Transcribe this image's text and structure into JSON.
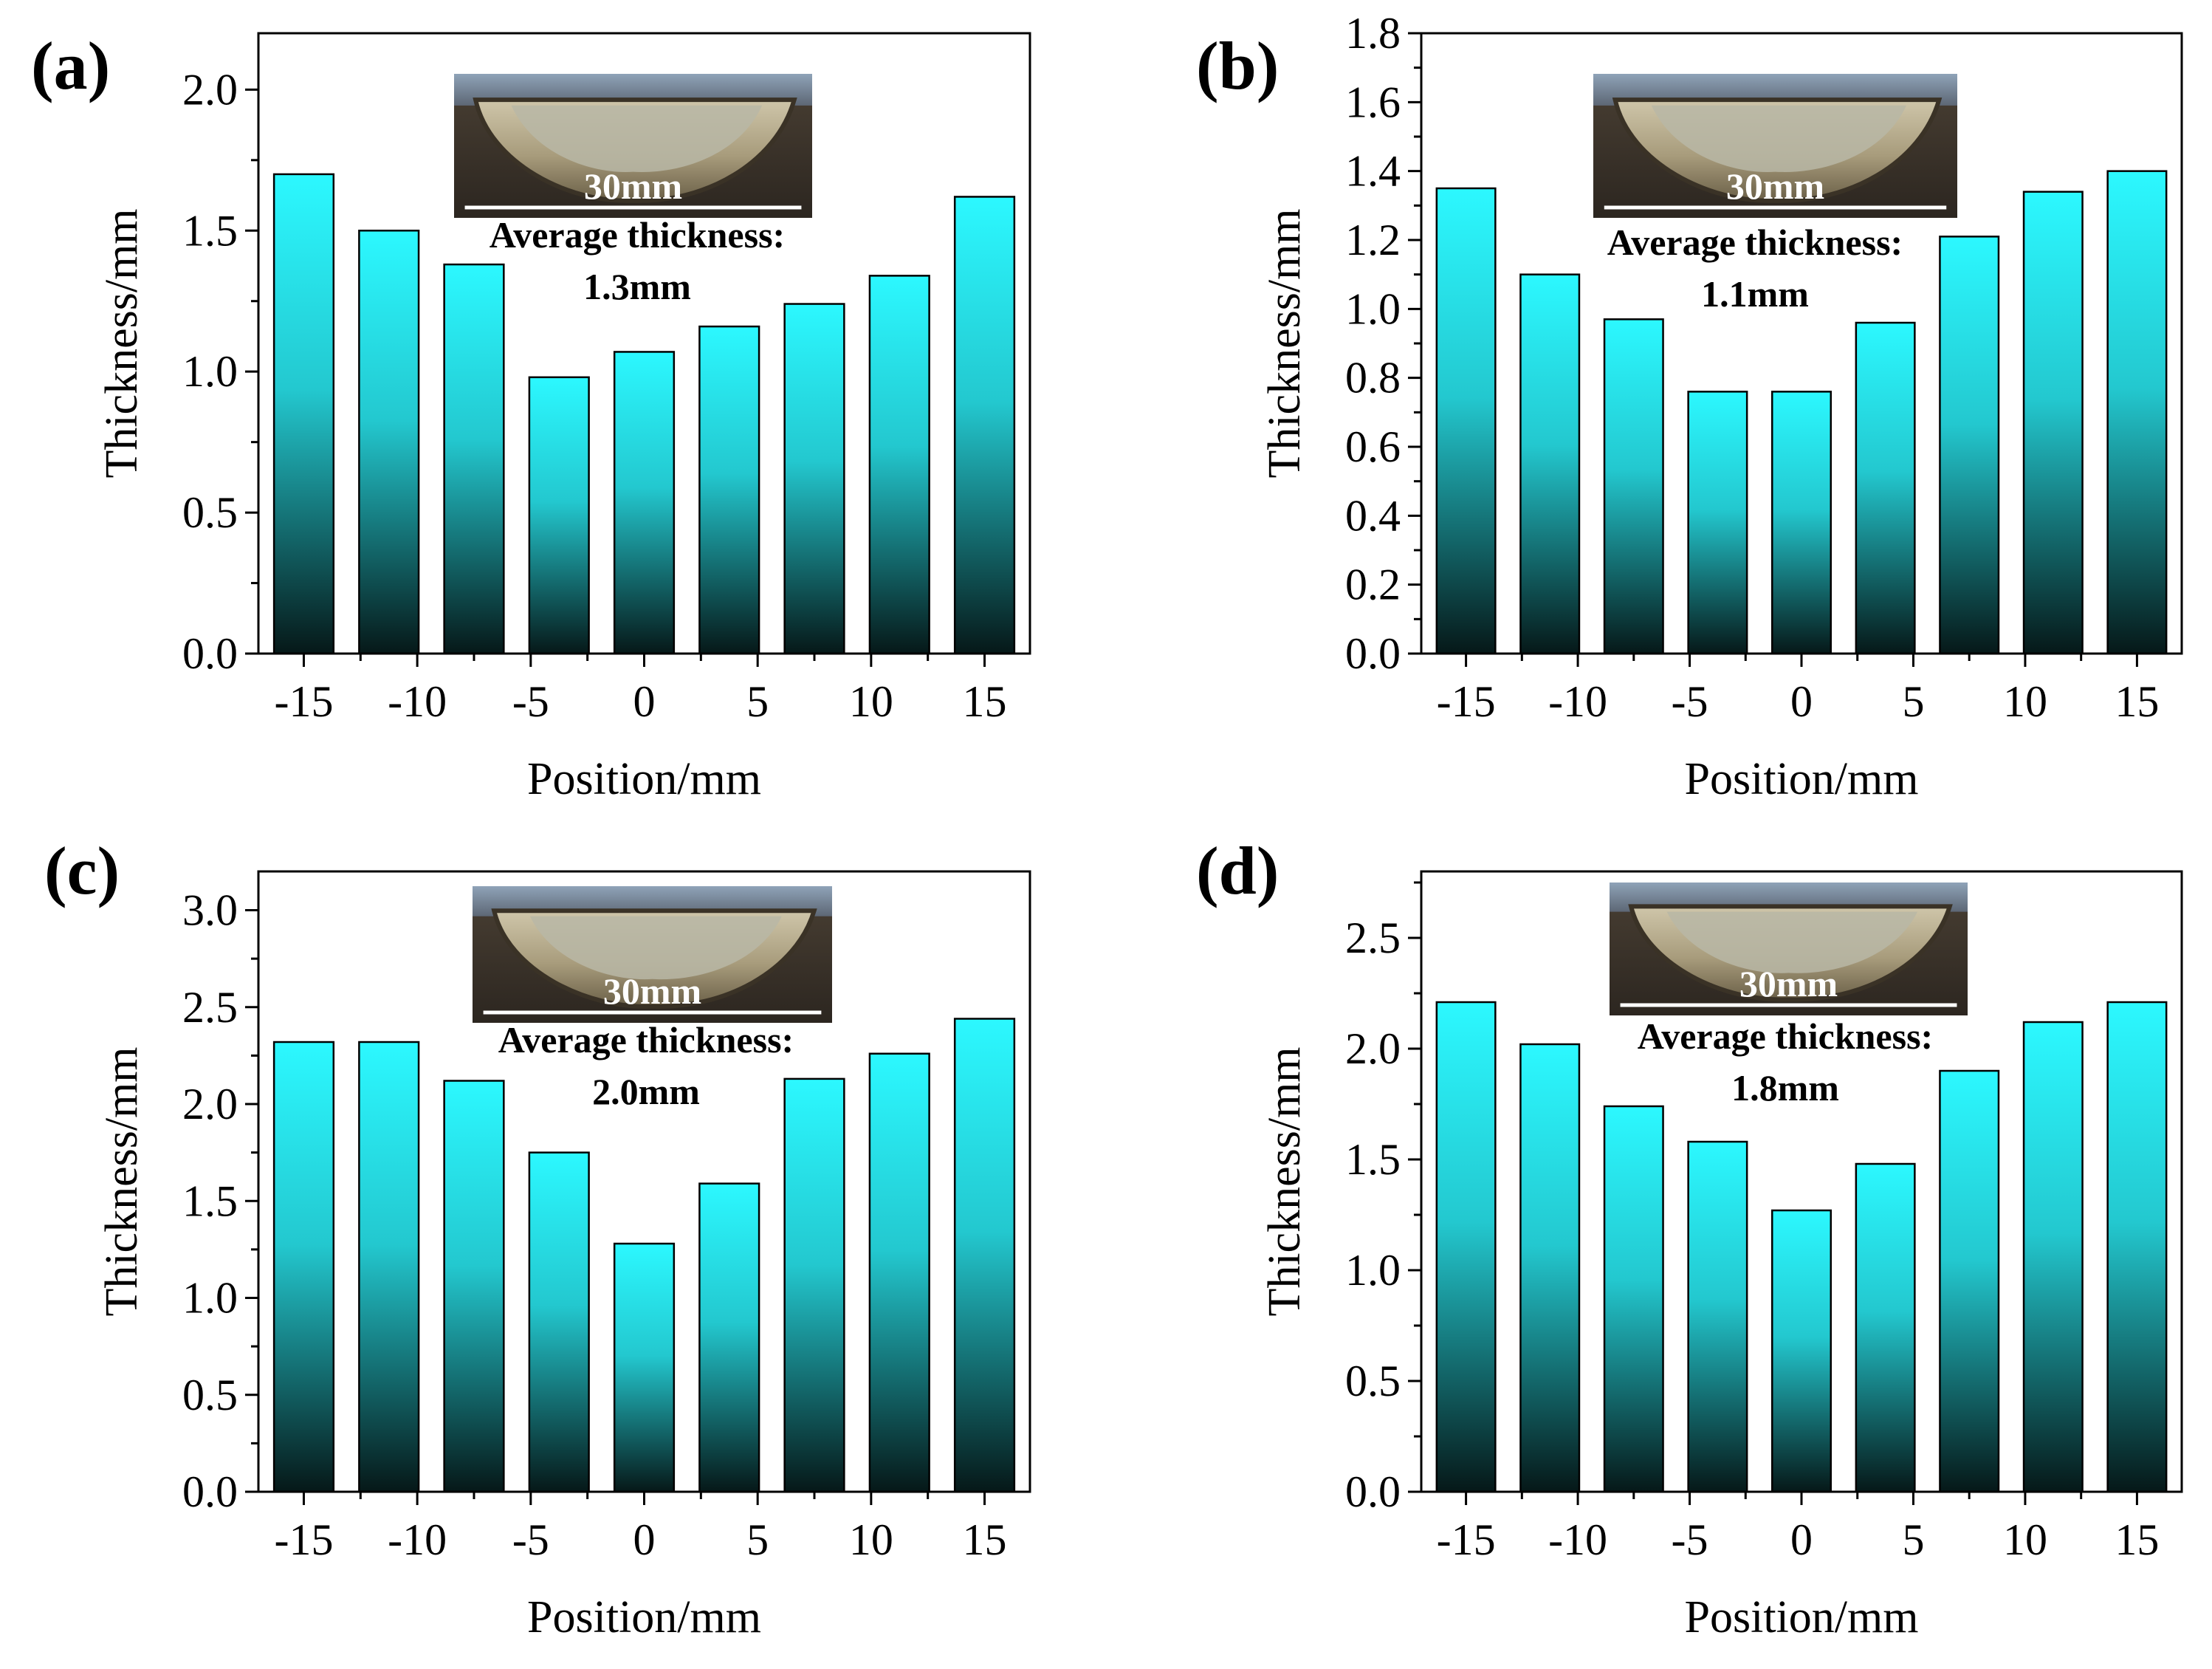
{
  "figure": {
    "gradient": {
      "top_color": "#2cf8ff",
      "mid_color": "#23c8cf",
      "bottom_color": "#061818"
    },
    "bar_outline_color": "#000000"
  },
  "chart_data": [
    {
      "id": "a",
      "type": "bar",
      "panel_label": "(a)",
      "xlabel": "Position/mm",
      "ylabel": "Thickness/mm",
      "categories": [
        -15,
        -11.25,
        -7.5,
        -3.75,
        0,
        3.75,
        7.5,
        11.25,
        15
      ],
      "values": [
        1.7,
        1.5,
        1.38,
        0.98,
        1.07,
        1.16,
        1.24,
        1.34,
        1.62
      ],
      "xlim": [
        -17,
        17
      ],
      "ylim": [
        0,
        2.2
      ],
      "yticks": [
        0.0,
        0.5,
        1.0,
        1.5,
        2.0
      ],
      "ytick_labels": [
        "0.0",
        "0.5",
        "1.0",
        "1.5",
        "2.0"
      ],
      "xticks": [
        -15,
        -10,
        -5,
        0,
        5,
        10,
        15
      ],
      "xtick_labels": [
        "-15",
        "-10",
        "-5",
        "0",
        "5",
        "10",
        "15"
      ],
      "inset": {
        "scale_label": "30mm",
        "annotation_line1": "Average thickness:",
        "annotation_line2": "1.3mm"
      }
    },
    {
      "id": "b",
      "type": "bar",
      "panel_label": "(b)",
      "xlabel": "Position/mm",
      "ylabel": "Thickness/mm",
      "categories": [
        -15,
        -11.25,
        -7.5,
        -3.75,
        0,
        3.75,
        7.5,
        11.25,
        15
      ],
      "values": [
        1.35,
        1.1,
        0.97,
        0.76,
        0.76,
        0.96,
        1.21,
        1.34,
        1.4
      ],
      "xlim": [
        -17,
        17
      ],
      "ylim": [
        0,
        1.8
      ],
      "yticks": [
        0.0,
        0.2,
        0.4,
        0.6,
        0.8,
        1.0,
        1.2,
        1.4,
        1.6,
        1.8
      ],
      "ytick_labels": [
        "0.0",
        "0.2",
        "0.4",
        "0.6",
        "0.8",
        "1.0",
        "1.2",
        "1.4",
        "1.6",
        "1.8"
      ],
      "xticks": [
        -15,
        -10,
        -5,
        0,
        5,
        10,
        15
      ],
      "xtick_labels": [
        "-15",
        "-10",
        "-5",
        "0",
        "5",
        "10",
        "15"
      ],
      "inset": {
        "scale_label": "30mm",
        "annotation_line1": "Average thickness:",
        "annotation_line2": "1.1mm"
      }
    },
    {
      "id": "c",
      "type": "bar",
      "panel_label": "(c)",
      "xlabel": "Position/mm",
      "ylabel": "Thickness/mm",
      "categories": [
        -15,
        -11.25,
        -7.5,
        -3.75,
        0,
        3.75,
        7.5,
        11.25,
        15
      ],
      "values": [
        2.32,
        2.32,
        2.12,
        1.75,
        1.28,
        1.59,
        2.13,
        2.26,
        2.44
      ],
      "xlim": [
        -17,
        17
      ],
      "ylim": [
        0,
        3.2
      ],
      "yticks": [
        0.0,
        0.5,
        1.0,
        1.5,
        2.0,
        2.5,
        3.0
      ],
      "ytick_labels": [
        "0.0",
        "0.5",
        "1.0",
        "1.5",
        "2.0",
        "2.5",
        "3.0"
      ],
      "xticks": [
        -15,
        -10,
        -5,
        0,
        5,
        10,
        15
      ],
      "xtick_labels": [
        "-15",
        "-10",
        "-5",
        "0",
        "5",
        "10",
        "15"
      ],
      "inset": {
        "scale_label": "30mm",
        "annotation_line1": "Average thickness:",
        "annotation_line2": "2.0mm"
      }
    },
    {
      "id": "d",
      "type": "bar",
      "panel_label": "(d)",
      "xlabel": "Position/mm",
      "ylabel": "Thickness/mm",
      "categories": [
        -15,
        -11.25,
        -7.5,
        -3.75,
        0,
        3.75,
        7.5,
        11.25,
        15
      ],
      "values": [
        2.21,
        2.02,
        1.74,
        1.58,
        1.27,
        1.48,
        1.9,
        2.12,
        2.21
      ],
      "xlim": [
        -17,
        17
      ],
      "ylim": [
        0,
        2.8
      ],
      "yticks": [
        0.0,
        0.5,
        1.0,
        1.5,
        2.0,
        2.5
      ],
      "ytick_labels": [
        "0.0",
        "0.5",
        "1.0",
        "1.5",
        "2.0",
        "2.5"
      ],
      "xticks": [
        -15,
        -10,
        -5,
        0,
        5,
        10,
        15
      ],
      "xtick_labels": [
        "-15",
        "-10",
        "-5",
        "0",
        "5",
        "10",
        "15"
      ],
      "inset": {
        "scale_label": "30mm",
        "annotation_line1": "Average thickness:",
        "annotation_line2": "1.8mm"
      }
    }
  ]
}
